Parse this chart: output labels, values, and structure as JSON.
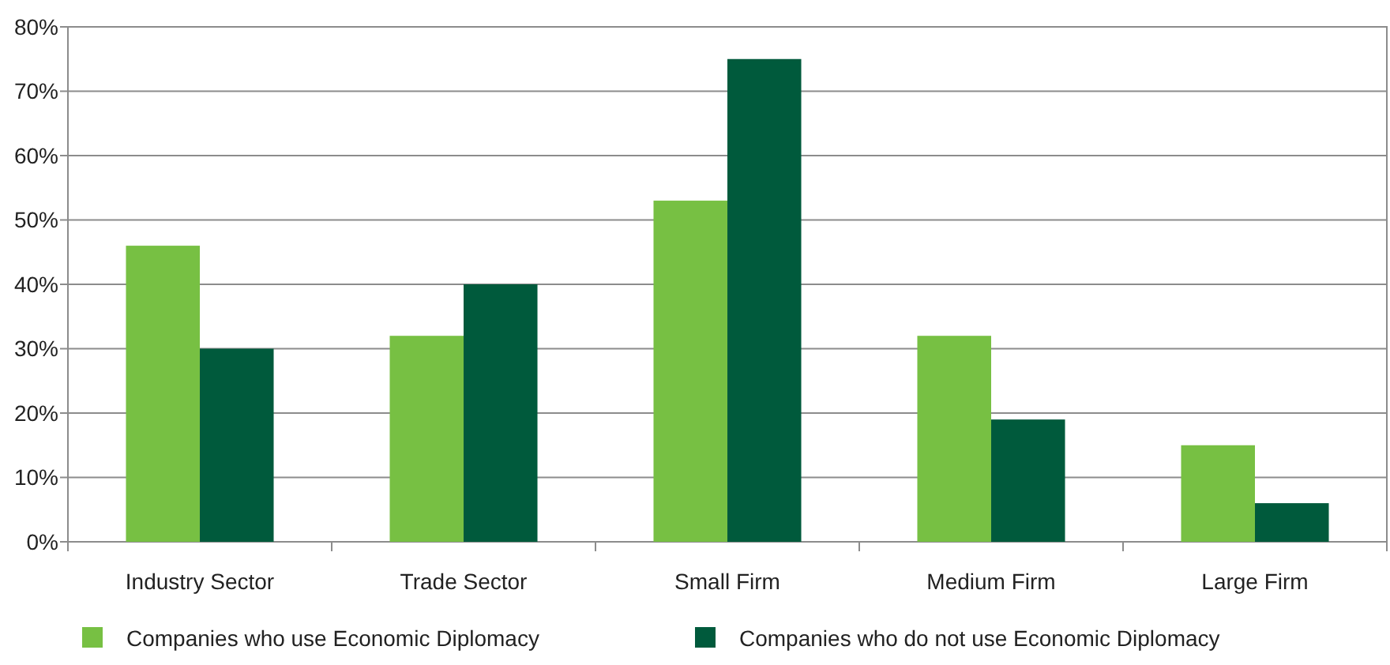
{
  "chart_data": {
    "type": "bar",
    "categories": [
      "Industry Sector",
      "Trade Sector",
      "Small Firm",
      "Medium Firm",
      "Large Firm"
    ],
    "series": [
      {
        "name": "Companies who use Economic Diplomacy",
        "color": "#77c043",
        "values": [
          46,
          32,
          53,
          32,
          15
        ]
      },
      {
        "name": "Companies who do not use Economic Diplomacy",
        "color": "#005a3c",
        "values": [
          30,
          40,
          75,
          19,
          6
        ]
      }
    ],
    "ylim": [
      0,
      80
    ],
    "yticks": [
      {
        "value": 0,
        "label": "0%"
      },
      {
        "value": 10,
        "label": "10%"
      },
      {
        "value": 20,
        "label": "20%"
      },
      {
        "value": 30,
        "label": "30%"
      },
      {
        "value": 40,
        "label": "40%"
      },
      {
        "value": 50,
        "label": "50%"
      },
      {
        "value": 60,
        "label": "60%"
      },
      {
        "value": 70,
        "label": "70%"
      },
      {
        "value": 80,
        "label": "80%"
      }
    ],
    "grid": "y",
    "legend": "bottom"
  }
}
